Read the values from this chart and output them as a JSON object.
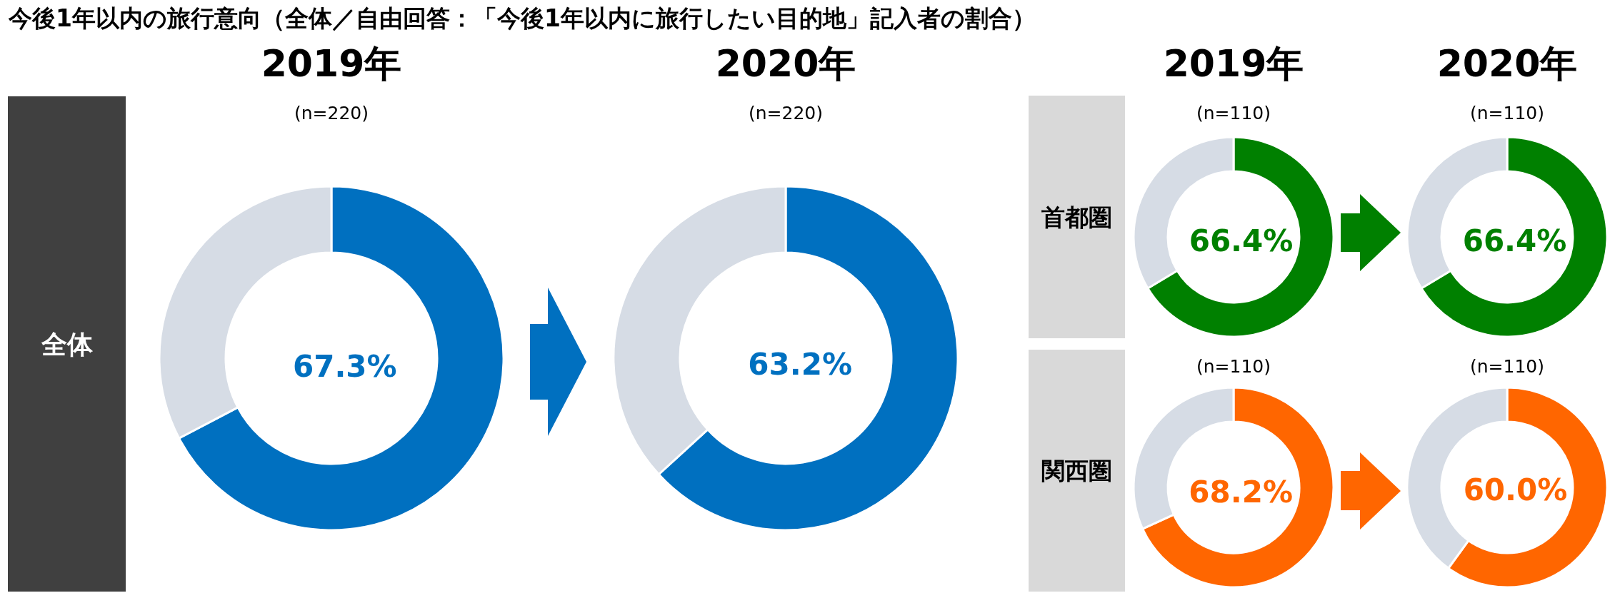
{
  "chart_data": [
    {
      "type": "other",
      "title": "今後1年以内の旅行意向（全体／自由回答：「今後1年以内に旅行したい目的地」記入者の割合）"
    },
    {
      "type": "donut",
      "title": "2019年",
      "subtitle": "(n=220)",
      "annotations": [
        "全体"
      ],
      "categories": [
        null,
        null
      ],
      "values": [
        67.3,
        32.7
      ],
      "colors": [
        "#0070c0",
        "#d6dce5"
      ],
      "value_labels": [
        "67.3%",
        null
      ]
    },
    {
      "type": "donut",
      "title": "2020年",
      "subtitle": "(n=220)",
      "categories": [
        null,
        null
      ],
      "values": [
        63.2,
        36.8
      ],
      "colors": [
        "#0070c0",
        "#d6dce5"
      ],
      "value_labels": [
        "63.2%",
        null
      ]
    },
    {
      "type": "donut",
      "title": "2019年",
      "subtitle": "(n=110)",
      "annotations": [
        "首都圏"
      ],
      "categories": [
        null,
        null
      ],
      "values": [
        66.4,
        33.6
      ],
      "colors": [
        "#008000",
        "#d6dce5"
      ],
      "value_labels": [
        "66.4%",
        null
      ]
    },
    {
      "type": "donut",
      "title": "2020年",
      "subtitle": "(n=110)",
      "categories": [
        null,
        null
      ],
      "values": [
        66.4,
        33.6
      ],
      "colors": [
        "#008000",
        "#d6dce5"
      ],
      "value_labels": [
        "66.4%",
        null
      ]
    },
    {
      "type": "donut",
      "subtitle": "(n=110)",
      "annotations": [
        "関西圏"
      ],
      "categories": [
        null,
        null
      ],
      "values": [
        68.2,
        31.8
      ],
      "colors": [
        "#ff6600",
        "#d6dce5"
      ],
      "value_labels": [
        "68.2%",
        null
      ]
    },
    {
      "type": "donut",
      "subtitle": "(n=110)",
      "categories": [
        null,
        null
      ],
      "values": [
        60.0,
        40.0
      ],
      "colors": [
        "#ff6600",
        "#d6dce5"
      ],
      "value_labels": [
        "60.0%",
        null
      ]
    }
  ]
}
